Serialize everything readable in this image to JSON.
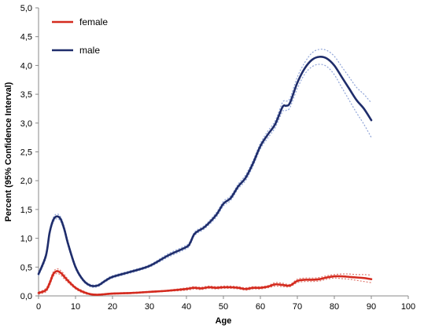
{
  "chart_data": {
    "type": "line",
    "xlabel": "Age",
    "ylabel": "Percent (95% Confidence Interval)",
    "xlim": [
      0,
      100
    ],
    "ylim": [
      0,
      5
    ],
    "x_ticks": [
      "0",
      "10",
      "20",
      "30",
      "40",
      "50",
      "60",
      "70",
      "80",
      "90",
      "100"
    ],
    "y_ticks": [
      "0,0",
      "0,5",
      "1,0",
      "1,5",
      "2,0",
      "2,5",
      "3,0",
      "3,5",
      "4,0",
      "4,5",
      "5,0"
    ],
    "grid": false,
    "legend_position": "top-left",
    "series": [
      {
        "name": "female",
        "color": "#d42a1e",
        "ci_color": "#e07a70",
        "x": [
          0,
          2,
          3,
          4,
          5,
          6,
          7,
          8,
          10,
          12,
          14,
          16,
          20,
          25,
          30,
          35,
          40,
          42,
          44,
          46,
          48,
          50,
          52,
          54,
          56,
          58,
          60,
          62,
          64,
          66,
          68,
          70,
          72,
          74,
          76,
          78,
          80,
          82,
          84,
          86,
          88,
          90
        ],
        "y": [
          0.05,
          0.1,
          0.22,
          0.38,
          0.43,
          0.4,
          0.33,
          0.26,
          0.14,
          0.07,
          0.03,
          0.02,
          0.04,
          0.05,
          0.07,
          0.09,
          0.12,
          0.14,
          0.13,
          0.15,
          0.14,
          0.15,
          0.15,
          0.14,
          0.12,
          0.14,
          0.14,
          0.16,
          0.2,
          0.19,
          0.18,
          0.26,
          0.28,
          0.28,
          0.29,
          0.32,
          0.34,
          0.34,
          0.33,
          0.32,
          0.31,
          0.29
        ],
        "ci_lower": [
          0.03,
          0.07,
          0.18,
          0.34,
          0.39,
          0.36,
          0.29,
          0.23,
          0.12,
          0.05,
          0.02,
          0.01,
          0.03,
          0.04,
          0.06,
          0.08,
          0.1,
          0.12,
          0.11,
          0.13,
          0.12,
          0.13,
          0.13,
          0.12,
          0.1,
          0.12,
          0.12,
          0.14,
          0.17,
          0.16,
          0.16,
          0.23,
          0.25,
          0.25,
          0.26,
          0.29,
          0.31,
          0.3,
          0.29,
          0.27,
          0.25,
          0.23
        ],
        "ci_upper": [
          0.07,
          0.13,
          0.26,
          0.42,
          0.47,
          0.44,
          0.37,
          0.29,
          0.16,
          0.09,
          0.04,
          0.03,
          0.05,
          0.06,
          0.08,
          0.1,
          0.14,
          0.16,
          0.15,
          0.17,
          0.16,
          0.17,
          0.17,
          0.16,
          0.14,
          0.16,
          0.16,
          0.18,
          0.23,
          0.22,
          0.2,
          0.29,
          0.31,
          0.31,
          0.32,
          0.35,
          0.37,
          0.38,
          0.38,
          0.37,
          0.37,
          0.36
        ]
      },
      {
        "name": "male",
        "color": "#1f2d6b",
        "ci_color": "#8fa4d8",
        "x": [
          0,
          2,
          3,
          4,
          5,
          6,
          7,
          8,
          10,
          12,
          14,
          16,
          18,
          20,
          25,
          30,
          35,
          40,
          41,
          42,
          43,
          45,
          48,
          50,
          52,
          54,
          56,
          58,
          60,
          62,
          64,
          66,
          67,
          68,
          70,
          72,
          74,
          76,
          78,
          80,
          82,
          84,
          86,
          88,
          90
        ],
        "y": [
          0.38,
          0.7,
          1.1,
          1.32,
          1.38,
          1.33,
          1.15,
          0.9,
          0.5,
          0.28,
          0.18,
          0.18,
          0.26,
          0.33,
          0.42,
          0.52,
          0.7,
          0.85,
          0.92,
          1.06,
          1.12,
          1.2,
          1.4,
          1.6,
          1.7,
          1.9,
          2.05,
          2.3,
          2.6,
          2.8,
          2.98,
          3.28,
          3.3,
          3.35,
          3.7,
          3.95,
          4.1,
          4.15,
          4.12,
          4.0,
          3.8,
          3.6,
          3.4,
          3.25,
          3.05
        ],
        "ci_lower": [
          0.35,
          0.66,
          1.06,
          1.28,
          1.34,
          1.29,
          1.11,
          0.86,
          0.47,
          0.26,
          0.16,
          0.16,
          0.24,
          0.31,
          0.4,
          0.5,
          0.67,
          0.82,
          0.89,
          1.03,
          1.09,
          1.17,
          1.36,
          1.56,
          1.66,
          1.86,
          2.0,
          2.25,
          2.55,
          2.74,
          2.92,
          3.2,
          3.22,
          3.27,
          3.6,
          3.85,
          3.98,
          4.02,
          3.98,
          3.84,
          3.62,
          3.4,
          3.18,
          2.98,
          2.75
        ],
        "ci_upper": [
          0.41,
          0.74,
          1.14,
          1.36,
          1.42,
          1.37,
          1.19,
          0.94,
          0.53,
          0.3,
          0.2,
          0.2,
          0.28,
          0.35,
          0.44,
          0.54,
          0.73,
          0.88,
          0.95,
          1.09,
          1.15,
          1.23,
          1.44,
          1.64,
          1.74,
          1.94,
          2.1,
          2.35,
          2.65,
          2.86,
          3.04,
          3.36,
          3.38,
          3.43,
          3.8,
          4.05,
          4.22,
          4.28,
          4.26,
          4.16,
          3.98,
          3.8,
          3.62,
          3.5,
          3.35
        ]
      }
    ]
  }
}
